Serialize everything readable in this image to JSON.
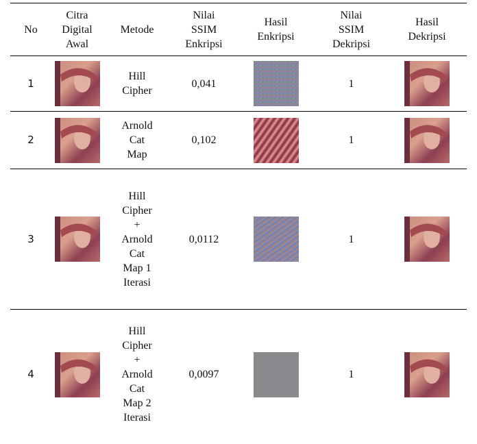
{
  "table": {
    "header": [
      "No",
      "Citra Digital Awal",
      "Metode",
      "Nilai SSIM Enkripsi",
      "Hasil Enkripsi",
      "Nilai SSIM Dekripsi",
      "Hasil Dekripsi"
    ],
    "rows": [
      {
        "no": "1",
        "metode": "Hill Cipher",
        "ssim_enkripsi": "0,041",
        "ssim_dekripsi": "1"
      },
      {
        "no": "2",
        "metode": "Arnold Cat Map",
        "ssim_enkripsi": "0,102",
        "ssim_dekripsi": "1"
      },
      {
        "no": "3",
        "metode": "Hill Cipher + Arnold Cat Map 1 Iterasi",
        "ssim_enkripsi": "0,0112",
        "ssim_dekripsi": "1"
      },
      {
        "no": "4",
        "metode": "Hill Cipher + Arnold Cat Map 2 Iterasi",
        "ssim_enkripsi": "0,0097",
        "ssim_dekripsi": "1"
      }
    ]
  }
}
